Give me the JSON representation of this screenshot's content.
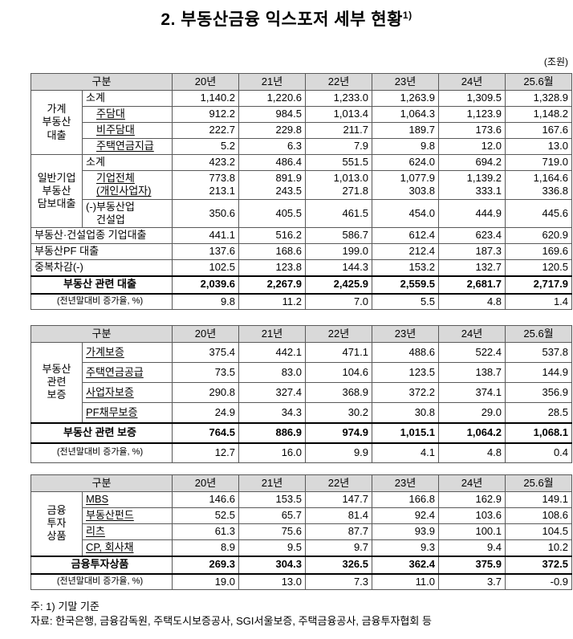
{
  "page": {
    "title": "2. 부동산금융 익스포저 세부 현황",
    "title_sup": "1)",
    "unit": "(조원)",
    "notes": [
      "주: 1) 기말 기준",
      "자료: 한국은행, 금융감독원, 주택도시보증공사, SGI서울보증, 주택금융공사, 금융투자협회 등"
    ]
  },
  "columns": [
    "구분",
    "20년",
    "21년",
    "22년",
    "23년",
    "24년",
    "25.6월"
  ],
  "tables": {
    "loans": {
      "rows": [
        {
          "group": {
            "text": "가계\n부동산\n대출",
            "span": 4
          },
          "label": "소계",
          "values": [
            "1,140.2",
            "1,220.6",
            "1,233.0",
            "1,263.9",
            "1,309.5",
            "1,328.9"
          ]
        },
        {
          "label": "주담대",
          "u": true,
          "ind": true,
          "values": [
            "912.2",
            "984.5",
            "1,013.4",
            "1,064.3",
            "1,123.9",
            "1,148.2"
          ]
        },
        {
          "label": "비주담대",
          "u": true,
          "ind": true,
          "values": [
            "222.7",
            "229.8",
            "211.7",
            "189.7",
            "173.6",
            "167.6"
          ]
        },
        {
          "label": "주택연금지급",
          "u": true,
          "ind": true,
          "values": [
            "5.2",
            "6.3",
            "7.9",
            "9.8",
            "12.0",
            "13.0"
          ]
        },
        {
          "group": {
            "text": "일반기업\n부동산\n담보대출",
            "span": 3
          },
          "label": "소계",
          "values": [
            "423.2",
            "486.4",
            "551.5",
            "624.0",
            "694.2",
            "719.0"
          ]
        },
        {
          "label": "기업전체\n(개인사업자)",
          "u": true,
          "ind": true,
          "values": [
            "773.8\n213.1",
            "891.9\n243.5",
            "1,013.0\n271.8",
            "1,077.9\n303.8",
            "1,139.2\n333.1",
            "1,164.6\n336.8"
          ]
        },
        {
          "label": "(-)부동산업\n　건설업",
          "values": [
            "350.6",
            "405.5",
            "461.5",
            "454.0",
            "444.9",
            "445.6"
          ]
        },
        {
          "label": "부동산·건설업종 기업대출",
          "full": true,
          "values": [
            "441.1",
            "516.2",
            "586.7",
            "612.4",
            "623.4",
            "620.9"
          ]
        },
        {
          "label": "부동산PF 대출",
          "full": true,
          "values": [
            "137.6",
            "168.6",
            "199.0",
            "212.4",
            "187.3",
            "169.6"
          ]
        },
        {
          "label": "중복차감(-)",
          "full": true,
          "values": [
            "102.5",
            "123.8",
            "144.3",
            "153.2",
            "132.7",
            "120.5"
          ]
        },
        {
          "label": "부동산 관련 대출",
          "full": true,
          "cls": "total",
          "values": [
            "2,039.6",
            "2,267.9",
            "2,425.9",
            "2,559.5",
            "2,681.7",
            "2,717.9"
          ]
        },
        {
          "label": "(전년말대비 증가율, %)",
          "full": true,
          "cls": "rate",
          "values": [
            "9.8",
            "11.2",
            "7.0",
            "5.5",
            "4.8",
            "1.4"
          ]
        }
      ]
    },
    "guarantees": {
      "rows": [
        {
          "group": {
            "text": "부동산\n관련\n보증",
            "span": 4
          },
          "label": "가계보증",
          "u": true,
          "values": [
            "375.4",
            "442.1",
            "471.1",
            "488.6",
            "522.4",
            "537.8"
          ]
        },
        {
          "label": "주택연금공급",
          "u": true,
          "values": [
            "73.5",
            "83.0",
            "104.6",
            "123.5",
            "138.7",
            "144.9"
          ]
        },
        {
          "label": "사업자보증",
          "u": true,
          "values": [
            "290.8",
            "327.4",
            "368.9",
            "372.2",
            "374.1",
            "356.9"
          ]
        },
        {
          "label": "PF채무보증",
          "u": true,
          "values": [
            "24.9",
            "34.3",
            "30.2",
            "30.8",
            "29.0",
            "28.5"
          ]
        },
        {
          "label": "부동산 관련 보증",
          "full": true,
          "cls": "total",
          "values": [
            "764.5",
            "886.9",
            "974.9",
            "1,015.1",
            "1,064.2",
            "1,068.1"
          ]
        },
        {
          "label": "(전년말대비 증가율, %)",
          "full": true,
          "cls": "rate",
          "values": [
            "12.7",
            "16.0",
            "9.9",
            "4.1",
            "4.8",
            "0.4"
          ]
        }
      ]
    },
    "investments": {
      "rows": [
        {
          "group": {
            "text": "금융\n투자\n상품",
            "span": 4
          },
          "label": "MBS",
          "u": true,
          "values": [
            "146.6",
            "153.5",
            "147.7",
            "166.8",
            "162.9",
            "149.1"
          ]
        },
        {
          "label": "부동산펀드",
          "u": true,
          "values": [
            "52.5",
            "65.7",
            "81.4",
            "92.4",
            "103.6",
            "108.6"
          ]
        },
        {
          "label": "리츠",
          "u": true,
          "values": [
            "61.3",
            "75.6",
            "87.7",
            "93.9",
            "100.1",
            "104.5"
          ]
        },
        {
          "label": "CP, 회사채",
          "u": true,
          "values": [
            "8.9",
            "9.5",
            "9.7",
            "9.3",
            "9.4",
            "10.2"
          ]
        },
        {
          "label": "금융투자상품",
          "full": true,
          "cls": "total",
          "values": [
            "269.3",
            "304.3",
            "326.5",
            "362.4",
            "375.9",
            "372.5"
          ]
        },
        {
          "label": "(전년말대비 증가율, %)",
          "full": true,
          "cls": "rate",
          "values": [
            "19.0",
            "13.0",
            "7.3",
            "11.0",
            "3.7",
            "-0.9"
          ]
        }
      ]
    }
  }
}
